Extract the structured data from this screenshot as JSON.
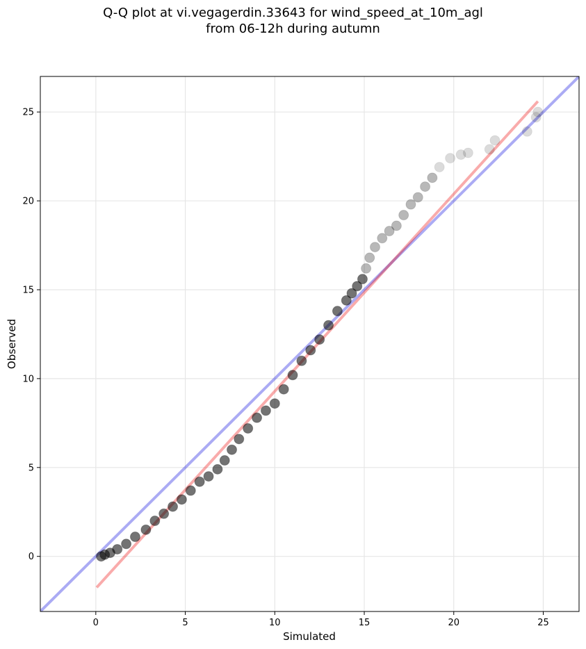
{
  "chart_data": {
    "type": "scatter",
    "title_line1": "Q-Q plot at vi.vegagerdin.33643 for wind_speed_at_10m_agl",
    "title_line2": "from 06-12h during autumn",
    "xlabel": "Simulated",
    "ylabel": "Observed",
    "xlim": [
      -3.1,
      27.0
    ],
    "ylim": [
      -3.1,
      27.0
    ],
    "xticks": [
      0,
      5,
      10,
      15,
      20,
      25
    ],
    "yticks": [
      0,
      5,
      10,
      15,
      20,
      25
    ],
    "grid": true,
    "colors": {
      "points": "#000000",
      "identity_line": "#0000dd",
      "fit_line": "#ee0000"
    },
    "identity_line": {
      "name": "",
      "points": [
        [
          -3.1,
          -3.1
        ],
        [
          27.0,
          27.0
        ]
      ]
    },
    "fit_line": {
      "name": "",
      "points": [
        [
          0.05,
          -1.75
        ],
        [
          24.7,
          25.6
        ]
      ]
    },
    "qq_points": {
      "x": [
        0.3,
        0.5,
        0.8,
        1.2,
        1.7,
        2.2,
        2.8,
        3.3,
        3.8,
        4.3,
        4.8,
        5.3,
        5.8,
        6.3,
        6.8,
        7.2,
        7.6,
        8.0,
        8.5,
        9.0,
        9.5,
        10.0,
        10.5,
        11.0,
        11.5,
        12.0,
        12.5,
        13.0,
        13.5,
        14.0,
        14.3,
        14.6,
        14.9,
        15.1,
        15.3,
        15.6,
        16.0,
        16.4,
        16.8,
        17.2,
        17.6,
        18.0,
        18.4,
        18.8,
        19.2,
        19.8,
        20.4,
        20.8,
        22.0,
        22.3,
        24.1,
        24.6,
        24.7
      ],
      "y": [
        0.0,
        0.1,
        0.2,
        0.4,
        0.7,
        1.1,
        1.5,
        2.0,
        2.4,
        2.8,
        3.2,
        3.7,
        4.2,
        4.5,
        4.9,
        5.4,
        6.0,
        6.6,
        7.2,
        7.8,
        8.2,
        8.6,
        9.4,
        10.2,
        11.0,
        11.6,
        12.2,
        13.0,
        13.8,
        14.4,
        14.8,
        15.2,
        15.6,
        16.2,
        16.8,
        17.4,
        17.9,
        18.3,
        18.6,
        19.2,
        19.8,
        20.2,
        20.8,
        21.3,
        21.9,
        22.4,
        22.6,
        22.7,
        22.9,
        23.4,
        23.9,
        24.7,
        25.0
      ]
    }
  }
}
